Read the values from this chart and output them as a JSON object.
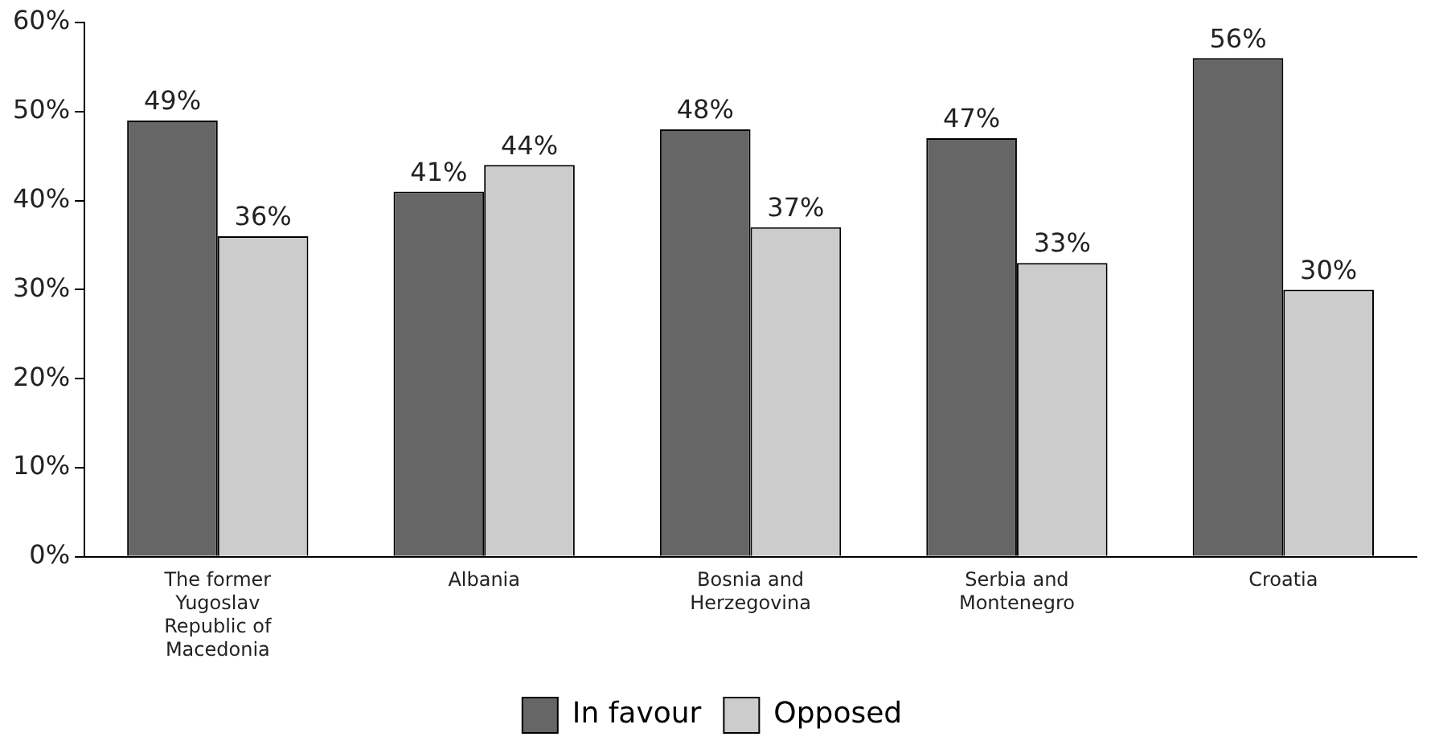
{
  "chart_data": {
    "type": "bar",
    "categories": [
      "The former Yugoslav Republic of Macedonia",
      "Albania",
      "Bosnia and Herzegovina",
      "Serbia and Montenegro",
      "Croatia"
    ],
    "series": [
      {
        "name": "In favour",
        "color": "#666666",
        "values": [
          49,
          41,
          48,
          47,
          56
        ],
        "value_labels": [
          "49%",
          "41%",
          "48%",
          "47%",
          "56%"
        ]
      },
      {
        "name": "Opposed",
        "color": "#cccccc",
        "values": [
          36,
          44,
          37,
          33,
          30
        ],
        "value_labels": [
          "36%",
          "44%",
          "37%",
          "33%",
          "30%"
        ]
      }
    ],
    "ylim": [
      0,
      60
    ],
    "yticks": [
      {
        "value": 0,
        "label": "0%"
      },
      {
        "value": 10,
        "label": "10%"
      },
      {
        "value": 20,
        "label": "20%"
      },
      {
        "value": 30,
        "label": "30%"
      },
      {
        "value": 40,
        "label": "40%"
      },
      {
        "value": 50,
        "label": "50%"
      },
      {
        "value": 60,
        "label": "60%"
      }
    ],
    "grid": false,
    "legend": "bottom"
  }
}
